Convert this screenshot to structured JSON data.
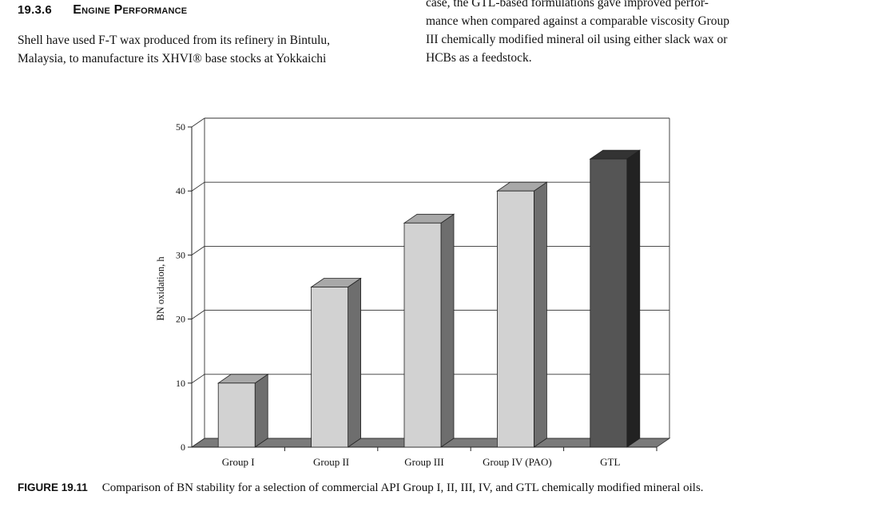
{
  "section": {
    "number": "19.3.6",
    "title": "Engine Performance"
  },
  "left_text": {
    "lines": [
      "Shell have used F-T wax produced from its refinery in Bintulu,",
      "Malaysia, to manufacture its XHVI® base stocks at Yokkaichi"
    ]
  },
  "right_text": {
    "lines": [
      "case, the GTL-based formulations gave improved perfor-",
      "mance when compared against a comparable viscosity Group",
      "III chemically modified mineral oil using either slack wax or",
      "HCBs as a feedstock."
    ]
  },
  "chart_data": {
    "type": "bar",
    "title": "",
    "xlabel": "",
    "ylabel": "BN oxidation, h",
    "ylim": [
      0,
      50
    ],
    "yticks": [
      0,
      10,
      20,
      30,
      40,
      50
    ],
    "categories": [
      "Group I",
      "Group II",
      "Group III",
      "Group IV (PAO)",
      "GTL"
    ],
    "values": [
      10,
      25,
      35,
      40,
      45
    ],
    "bar_colors": [
      "#d2d2d2",
      "#d2d2d2",
      "#d2d2d2",
      "#d2d2d2",
      "#555555"
    ],
    "grid": true,
    "style": "3d"
  },
  "caption": {
    "label": "FIGURE 19.11",
    "text": "Comparison of BN stability for a selection of commercial API Group I, II, III, IV, and GTL chemically modified mineral oils."
  }
}
